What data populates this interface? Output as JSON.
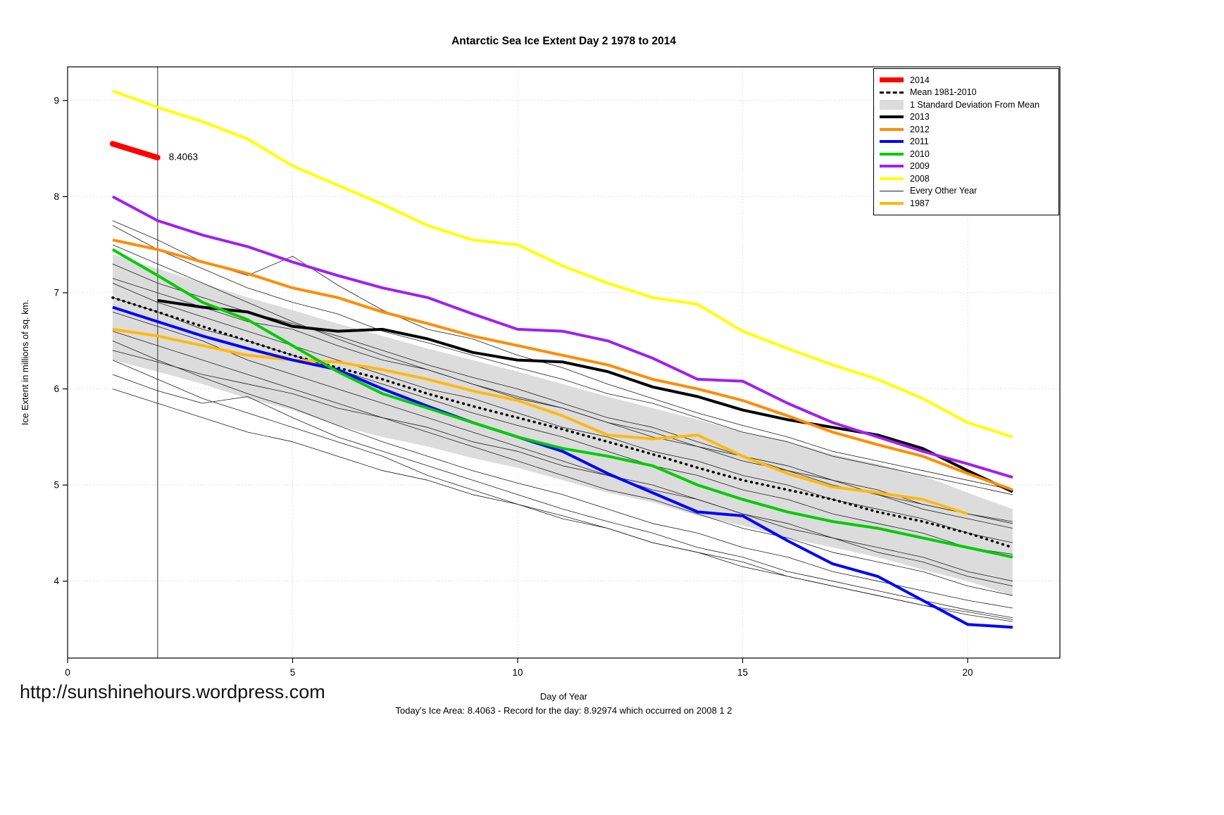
{
  "title": "Antarctic Sea Ice Extent Day 2 1978 to 2014",
  "footer": {
    "url": "http://sunshinehours.wordpress.com",
    "caption": "Today's Ice Area: 8.4063  - Record for the day: 8.92974 which occurred on 2008 1 2"
  },
  "chart_data": {
    "type": "line",
    "title": "Antarctic Sea Ice Extent Day 2 1978 to 2014",
    "xlabel": "Day of Year",
    "ylabel": "Ice Extent in millions of sq. km.",
    "xlim": [
      0,
      22.05
    ],
    "ylim": [
      3.2,
      9.35
    ],
    "xticks": [
      0,
      5,
      10,
      15,
      20
    ],
    "yticks": [
      4,
      5,
      6,
      7,
      8,
      9
    ],
    "grid": true,
    "legend_position": "top-right",
    "vline_x": 2,
    "annotation": {
      "text": "8.4063",
      "x": 2.25,
      "y": 8.41,
      "color": "#FF0000"
    },
    "x": [
      1,
      2,
      3,
      4,
      5,
      6,
      7,
      8,
      9,
      10,
      11,
      12,
      13,
      14,
      15,
      16,
      17,
      18,
      19,
      20,
      21
    ],
    "band": {
      "name": "1 Standard Deviation From Mean",
      "color": "#DCDCDC",
      "upper": [
        7.4,
        7.25,
        7.1,
        6.95,
        6.82,
        6.68,
        6.55,
        6.42,
        6.3,
        6.18,
        6.05,
        5.92,
        5.8,
        5.68,
        5.55,
        5.45,
        5.32,
        5.22,
        5.1,
        4.92,
        4.75
      ],
      "lower": [
        6.3,
        6.18,
        6.05,
        5.9,
        5.78,
        5.62,
        5.5,
        5.4,
        5.28,
        5.18,
        5.05,
        4.92,
        4.82,
        4.68,
        4.58,
        4.45,
        4.35,
        4.25,
        4.12,
        4.0,
        3.85
      ]
    },
    "series": [
      {
        "name": "Mean 1981-2010",
        "color": "#000000",
        "width": 3.5,
        "dash": "1 7",
        "values": [
          6.95,
          6.8,
          6.65,
          6.5,
          6.35,
          6.22,
          6.1,
          5.95,
          5.82,
          5.7,
          5.58,
          5.45,
          5.32,
          5.18,
          5.05,
          4.95,
          4.85,
          4.72,
          4.62,
          4.5,
          4.35
        ]
      },
      {
        "name": "1987",
        "color": "#FFB90F",
        "width": 4,
        "values": [
          6.62,
          6.55,
          6.45,
          6.35,
          6.3,
          6.28,
          6.2,
          6.1,
          5.98,
          5.88,
          5.72,
          5.52,
          5.48,
          5.52,
          5.3,
          5.12,
          4.98,
          4.92,
          4.85,
          4.7,
          null
        ]
      },
      {
        "name": "2013",
        "color": "#000000",
        "width": 4,
        "values": [
          null,
          6.92,
          6.85,
          6.8,
          6.65,
          6.6,
          6.62,
          6.52,
          6.38,
          6.3,
          6.28,
          6.18,
          6.02,
          5.92,
          5.78,
          5.68,
          5.6,
          5.52,
          5.38,
          5.15,
          4.93
        ]
      },
      {
        "name": "2012",
        "color": "#FF8C00",
        "width": 4,
        "values": [
          7.55,
          7.45,
          7.32,
          7.2,
          7.05,
          6.95,
          6.8,
          6.68,
          6.55,
          6.45,
          6.35,
          6.25,
          6.1,
          6.0,
          5.88,
          5.72,
          5.55,
          5.42,
          5.3,
          5.12,
          4.95
        ]
      },
      {
        "name": "2011",
        "color": "#0000FF",
        "width": 4,
        "values": [
          6.85,
          6.7,
          6.55,
          6.42,
          6.3,
          6.2,
          6.0,
          5.82,
          5.65,
          5.5,
          5.35,
          5.12,
          4.92,
          4.72,
          4.68,
          4.42,
          4.18,
          4.05,
          3.8,
          3.55,
          3.52
        ]
      },
      {
        "name": "2010",
        "color": "#00CC00",
        "width": 4,
        "values": [
          7.45,
          7.18,
          6.9,
          6.72,
          6.45,
          6.18,
          5.95,
          5.8,
          5.65,
          5.5,
          5.38,
          5.3,
          5.2,
          5.0,
          4.85,
          4.72,
          4.62,
          4.55,
          4.45,
          4.35,
          4.25
        ]
      },
      {
        "name": "2009",
        "color": "#A020F0",
        "width": 4,
        "values": [
          8.0,
          7.75,
          7.6,
          7.48,
          7.32,
          7.18,
          7.05,
          6.95,
          6.78,
          6.62,
          6.6,
          6.5,
          6.32,
          6.1,
          6.08,
          5.85,
          5.65,
          5.5,
          5.35,
          5.22,
          5.08
        ]
      },
      {
        "name": "2008",
        "color": "#FFFF00",
        "width": 4,
        "values": [
          9.1,
          8.93,
          8.78,
          8.6,
          8.32,
          8.12,
          7.92,
          7.7,
          7.55,
          7.5,
          7.28,
          7.1,
          6.95,
          6.88,
          6.6,
          6.42,
          6.25,
          6.1,
          5.9,
          5.65,
          5.5
        ]
      },
      {
        "name": "2014",
        "color": "#FF0000",
        "width": 8,
        "values": [
          8.55,
          8.4063,
          null,
          null,
          null,
          null,
          null,
          null,
          null,
          null,
          null,
          null,
          null,
          null,
          null,
          null,
          null,
          null,
          null,
          null,
          null
        ]
      }
    ],
    "other_years": {
      "name": "Every Other Year",
      "color": "#1f1f1f",
      "width": 0.8,
      "lines": [
        [
          7.75,
          7.55,
          7.32,
          7.18,
          7.38,
          7.08,
          6.82,
          6.62,
          6.52,
          6.35,
          6.22,
          6.05,
          5.9,
          5.75,
          5.62,
          5.5,
          5.35,
          5.25,
          5.15,
          5.05,
          4.95
        ],
        [
          7.7,
          7.45,
          7.25,
          7.05,
          6.9,
          6.78,
          6.6,
          6.48,
          6.35,
          6.22,
          6.1,
          5.95,
          5.85,
          5.7,
          5.55,
          5.45,
          5.3,
          5.2,
          5.1,
          5.0,
          4.9
        ],
        [
          7.5,
          7.3,
          7.1,
          6.9,
          6.7,
          6.52,
          6.35,
          6.2,
          6.05,
          5.92,
          5.8,
          5.65,
          5.5,
          5.4,
          5.25,
          5.15,
          5.0,
          4.9,
          4.75,
          4.65,
          4.55
        ],
        [
          7.3,
          7.1,
          6.95,
          6.8,
          6.68,
          6.55,
          6.4,
          6.25,
          6.12,
          6.0,
          5.85,
          5.7,
          5.6,
          5.45,
          5.3,
          5.2,
          5.05,
          4.95,
          4.8,
          4.7,
          4.62
        ],
        [
          7.15,
          7.0,
          6.85,
          6.7,
          6.62,
          6.45,
          6.3,
          6.2,
          6.05,
          5.9,
          5.8,
          5.65,
          5.55,
          5.4,
          5.3,
          5.15,
          5.05,
          4.9,
          4.8,
          4.7,
          4.6
        ],
        [
          7.1,
          6.9,
          6.75,
          6.6,
          6.45,
          6.3,
          6.15,
          6.0,
          5.9,
          5.75,
          5.6,
          5.5,
          5.35,
          5.25,
          5.1,
          5.0,
          4.85,
          4.75,
          4.65,
          4.5,
          4.4
        ],
        [
          6.95,
          6.8,
          6.62,
          6.5,
          6.35,
          6.2,
          6.05,
          5.9,
          5.75,
          5.62,
          5.5,
          5.35,
          5.2,
          5.1,
          4.95,
          4.85,
          4.7,
          4.6,
          4.5,
          4.35,
          4.28
        ],
        [
          6.8,
          6.65,
          6.5,
          6.3,
          6.15,
          6.0,
          5.85,
          5.7,
          5.55,
          5.4,
          5.25,
          5.1,
          5.0,
          4.85,
          4.7,
          4.6,
          4.45,
          4.35,
          4.25,
          4.1,
          4.0
        ],
        [
          6.6,
          6.45,
          6.3,
          6.15,
          6.0,
          5.85,
          5.7,
          5.55,
          5.4,
          5.25,
          5.1,
          4.95,
          4.85,
          4.7,
          4.55,
          4.45,
          4.3,
          4.2,
          4.1,
          3.95,
          3.85
        ],
        [
          6.5,
          6.3,
          6.12,
          5.95,
          5.8,
          5.62,
          5.45,
          5.3,
          5.15,
          5.02,
          4.9,
          4.75,
          4.6,
          4.5,
          4.35,
          4.25,
          4.1,
          4.0,
          3.9,
          3.8,
          3.72
        ],
        [
          6.4,
          6.28,
          6.15,
          6.05,
          5.95,
          5.8,
          5.7,
          5.6,
          5.45,
          5.35,
          5.2,
          5.1,
          4.95,
          4.85,
          4.7,
          4.55,
          4.45,
          4.3,
          4.2,
          4.05,
          3.95
        ],
        [
          6.3,
          6.1,
          5.9,
          5.75,
          5.6,
          5.45,
          5.3,
          5.1,
          4.95,
          4.8,
          4.68,
          4.55,
          4.4,
          4.3,
          4.15,
          4.05,
          3.95,
          3.85,
          3.75,
          3.65,
          3.58
        ],
        [
          6.15,
          5.98,
          5.85,
          5.92,
          5.7,
          5.5,
          5.35,
          5.2,
          5.05,
          4.9,
          4.75,
          4.62,
          4.5,
          4.35,
          4.25,
          4.1,
          4.0,
          3.9,
          3.8,
          3.7,
          3.62
        ],
        [
          6.0,
          5.85,
          5.7,
          5.55,
          5.45,
          5.3,
          5.15,
          5.05,
          4.9,
          4.8,
          4.65,
          4.55,
          4.4,
          4.3,
          4.2,
          4.05,
          3.95,
          3.85,
          3.75,
          3.68,
          3.6
        ]
      ]
    },
    "legend": [
      {
        "label": "2014",
        "type": "line",
        "color": "#FF0000",
        "width": 7
      },
      {
        "label": "Mean 1981-2010",
        "type": "dashed",
        "color": "#000000",
        "width": 3
      },
      {
        "label": "1 Standard Deviation From Mean",
        "type": "band",
        "color": "#DCDCDC"
      },
      {
        "label": "2013",
        "type": "line",
        "color": "#000000",
        "width": 4
      },
      {
        "label": "2012",
        "type": "line",
        "color": "#FF8C00",
        "width": 4
      },
      {
        "label": "2011",
        "type": "line",
        "color": "#0000FF",
        "width": 4
      },
      {
        "label": "2010",
        "type": "line",
        "color": "#00CC00",
        "width": 4
      },
      {
        "label": "2009",
        "type": "line",
        "color": "#A020F0",
        "width": 4
      },
      {
        "label": "2008",
        "type": "line",
        "color": "#FFFF00",
        "width": 4
      },
      {
        "label": "Every Other Year",
        "type": "line",
        "color": "#1f1f1f",
        "width": 1
      },
      {
        "label": "1987",
        "type": "line",
        "color": "#FFB90F",
        "width": 4
      }
    ]
  }
}
